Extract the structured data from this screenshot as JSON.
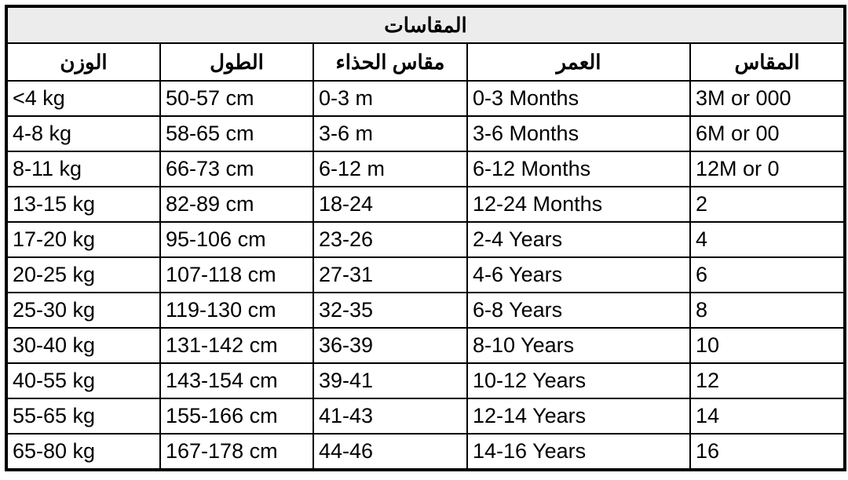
{
  "title": "المقاسات",
  "headers": [
    "الوزن",
    "الطول",
    "مقاس الحذاء",
    "العمر",
    "المقاس"
  ],
  "rows": [
    [
      "<4 kg",
      "50-57 cm",
      "0-3 m",
      "0-3 Months",
      "3M or 000"
    ],
    [
      "4-8 kg",
      "58-65 cm",
      "3-6 m",
      "3-6 Months",
      "6M or 00"
    ],
    [
      "8-11 kg",
      "66-73 cm",
      "6-12 m",
      "6-12 Months",
      "12M or 0"
    ],
    [
      "13-15 kg",
      "82-89 cm",
      "18-24",
      "12-24 Months",
      "2"
    ],
    [
      "17-20 kg",
      "95-106 cm",
      "23-26",
      "2-4 Years",
      "4"
    ],
    [
      "20-25 kg",
      "107-118 cm",
      "27-31",
      "4-6 Years",
      "6"
    ],
    [
      "25-30 kg",
      "119-130 cm",
      "32-35",
      "6-8 Years",
      "8"
    ],
    [
      "30-40 kg",
      "131-142 cm",
      "36-39",
      "8-10 Years",
      "10"
    ],
    [
      "40-55 kg",
      "143-154 cm",
      "39-41",
      "10-12 Years",
      "12"
    ],
    [
      "55-65 kg",
      "155-166 cm",
      "41-43",
      "12-14 Years",
      "14"
    ],
    [
      "65-80 kg",
      "167-178 cm",
      "44-46",
      "14-16 Years",
      "16"
    ]
  ],
  "colors": {
    "title_bg": "#ececec",
    "border": "#000000"
  }
}
